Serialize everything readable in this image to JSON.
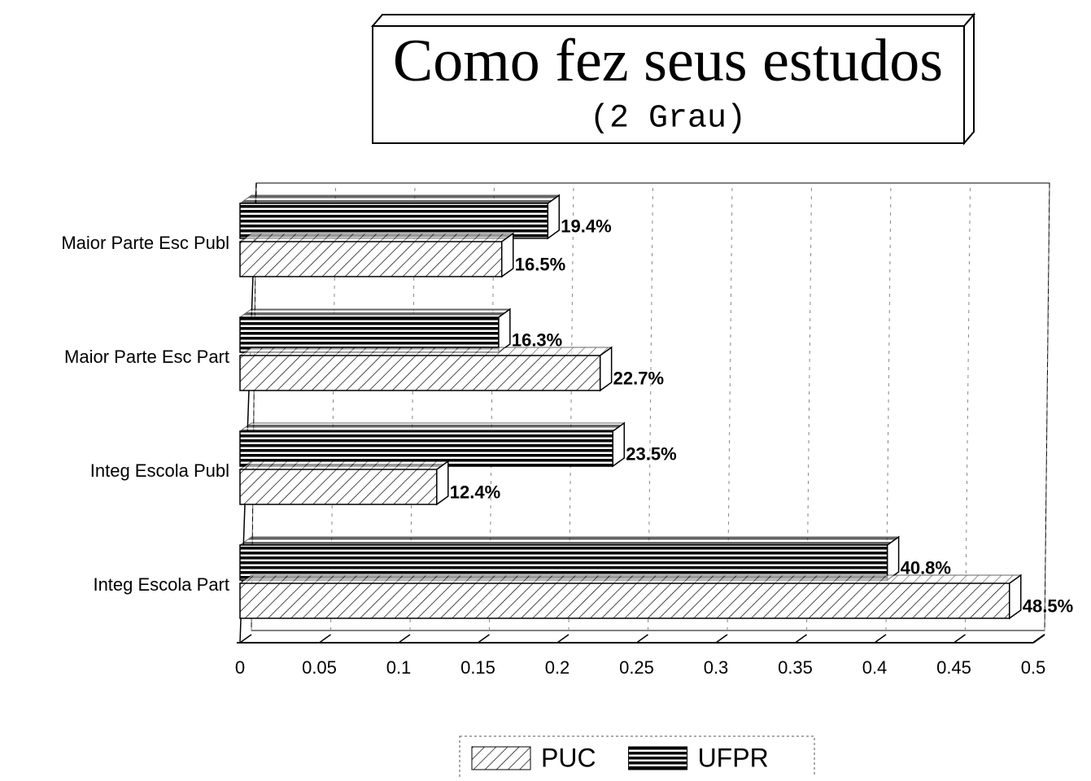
{
  "chart_data": {
    "type": "barh",
    "title": "Como fez seus estudos",
    "subtitle": "(2 Grau)",
    "categories": [
      "Maior Parte Esc Publ",
      "Maior Parte Esc Part",
      "Integ Escola Publ",
      "Integ Escola Part"
    ],
    "series": [
      {
        "name": "PUC",
        "color": "#000000",
        "pattern": "hatch",
        "values": [
          0.165,
          0.227,
          0.124,
          0.485
        ],
        "value_labels": [
          "16.5%",
          "22.7%",
          "12.4%",
          "48.5%"
        ]
      },
      {
        "name": "UFPR",
        "color": "#000000",
        "pattern": "stripes",
        "values": [
          0.194,
          0.163,
          0.235,
          0.408
        ],
        "value_labels": [
          "19.4%",
          "16.3%",
          "23.5%",
          "40.8%"
        ]
      }
    ],
    "xlim": [
      0,
      0.5
    ],
    "xticks": [
      0,
      0.05,
      0.1,
      0.15,
      0.2,
      0.25,
      0.3,
      0.35,
      0.4,
      0.45,
      0.5
    ],
    "grid": true,
    "legend": "bottom"
  }
}
